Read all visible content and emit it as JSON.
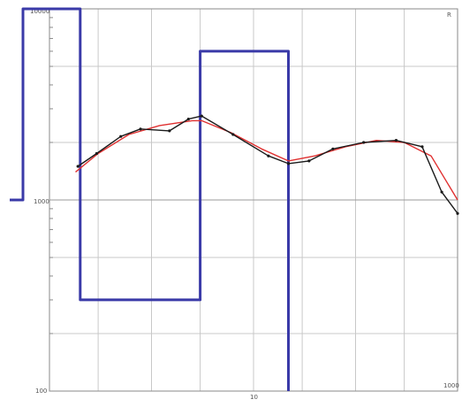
{
  "chart_data": {
    "type": "line",
    "x_scale": "log",
    "y_scale": "log",
    "xlim": [
      0.1,
      1000
    ],
    "ylim": [
      100,
      10000
    ],
    "grid": true,
    "legend": "none",
    "tick_labels": {
      "y_top": "10000",
      "y_mid": "1000",
      "y_bottom": "100",
      "x_mid": "10",
      "x_right": "1000",
      "corner_top_right": "R"
    },
    "series": [
      {
        "role": "measured",
        "color": "#1a1a1a",
        "marker": "dot",
        "points": [
          [
            0.19,
            1500
          ],
          [
            0.29,
            1750
          ],
          [
            0.5,
            2150
          ],
          [
            0.78,
            2350
          ],
          [
            1.5,
            2300
          ],
          [
            2.3,
            2650
          ],
          [
            3.1,
            2750
          ],
          [
            6.3,
            2200
          ],
          [
            14,
            1700
          ],
          [
            22,
            1550
          ],
          [
            35,
            1600
          ],
          [
            60,
            1850
          ],
          [
            120,
            2000
          ],
          [
            250,
            2050
          ],
          [
            450,
            1900
          ],
          [
            700,
            1100
          ],
          [
            1000,
            850
          ]
        ]
      },
      {
        "role": "calculated",
        "color": "#e03030",
        "points": [
          [
            0.18,
            1400
          ],
          [
            0.3,
            1750
          ],
          [
            0.6,
            2200
          ],
          [
            1.2,
            2450
          ],
          [
            2.5,
            2600
          ],
          [
            3.1,
            2600
          ],
          [
            6,
            2250
          ],
          [
            12,
            1850
          ],
          [
            22,
            1600
          ],
          [
            40,
            1700
          ],
          [
            80,
            1900
          ],
          [
            160,
            2050
          ],
          [
            300,
            2000
          ],
          [
            550,
            1700
          ],
          [
            1000,
            1000
          ]
        ]
      },
      {
        "role": "layered-model",
        "color": "#3a3aa8",
        "points": [
          [
            0.1,
            1000
          ],
          [
            0.1,
            10000
          ],
          [
            0.2,
            10000
          ],
          [
            0.2,
            300
          ],
          [
            3.0,
            300
          ],
          [
            3.0,
            6000
          ],
          [
            22,
            6000
          ],
          [
            22,
            100
          ]
        ]
      }
    ]
  },
  "colors": {
    "measured": "#1a1a1a",
    "calculated": "#e03030",
    "model": "#3a3aa8",
    "grid": "#c8c8c8"
  }
}
